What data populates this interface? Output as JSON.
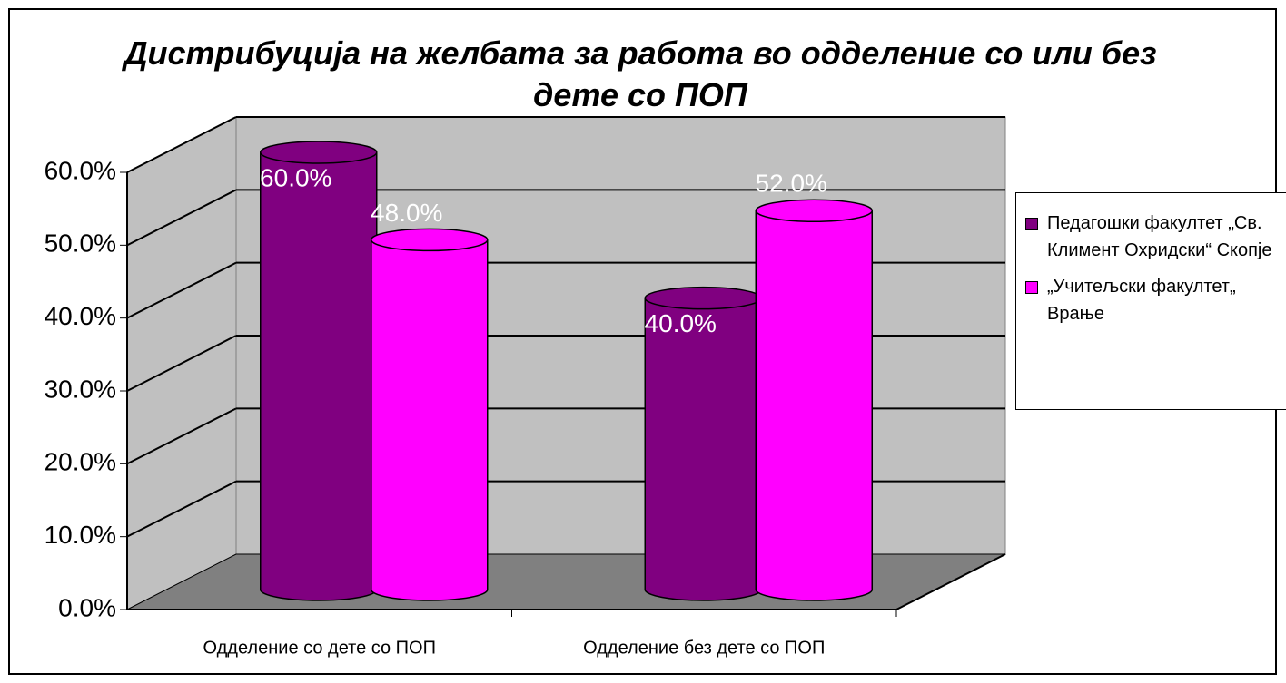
{
  "chart_data": {
    "type": "bar3d",
    "title": "Дистрибуција на желбата за работа во одделение со или без дете со ПОП",
    "categories": [
      "Одделение со дете со ПОП",
      "Одделение без дете со ПОП"
    ],
    "series": [
      {
        "name": "Педагошки факултет „Св. Климент Охридски“ Скопје",
        "color": "#800080",
        "values": [
          60,
          40
        ],
        "value_labels": [
          "60.0%",
          "40.0%"
        ]
      },
      {
        "name": "„Учитељски факултет„ Врање",
        "color": "#ff00ff",
        "values": [
          48,
          52
        ],
        "value_labels": [
          "48.0%",
          "52.0%"
        ]
      }
    ],
    "ylim": [
      0,
      60
    ],
    "yticks": [
      {
        "value": 0,
        "label": "0.0%"
      },
      {
        "value": 10,
        "label": "10.0%"
      },
      {
        "value": 20,
        "label": "20.0%"
      },
      {
        "value": 30,
        "label": "30.0%"
      },
      {
        "value": 40,
        "label": "40.0%"
      },
      {
        "value": 50,
        "label": "50.0%"
      },
      {
        "value": 60,
        "label": "60.0%"
      }
    ],
    "grid": true,
    "legend": "right"
  }
}
